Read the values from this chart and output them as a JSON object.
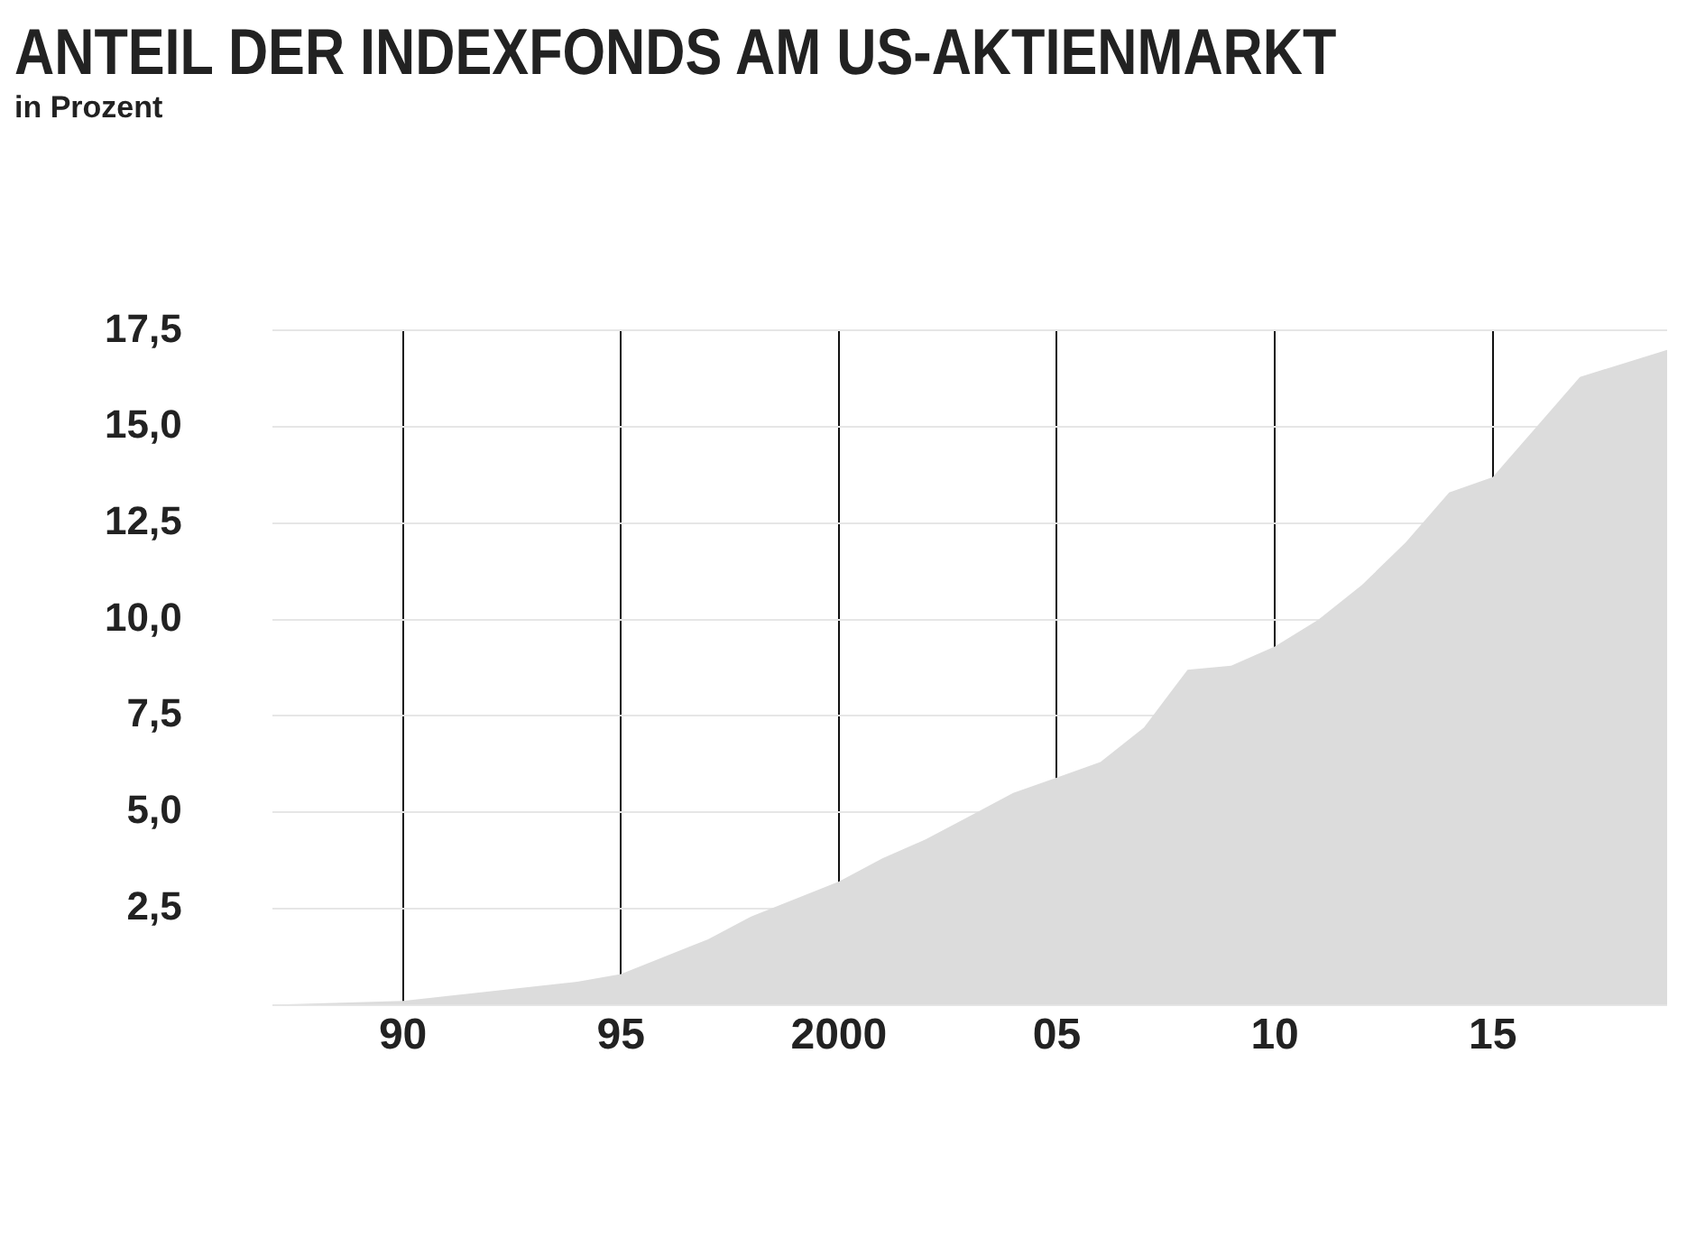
{
  "chart_data": {
    "type": "area",
    "title": "ANTEIL DER INDEXFONDS AM US-AKTIENMARKT",
    "subtitle": "in Prozent",
    "x": [
      1987,
      1990,
      1994,
      1995,
      1997,
      1998,
      2000,
      2001,
      2002,
      2003,
      2004,
      2005,
      2006,
      2007,
      2008,
      2009,
      2010,
      2011,
      2012,
      2013,
      2014,
      2015,
      2016,
      2017,
      2019
    ],
    "series": [
      {
        "color": "#dcdcdc",
        "values": [
          0,
          0.1,
          0.6,
          0.8,
          1.7,
          2.3,
          3.2,
          3.8,
          4.3,
          4.9,
          5.5,
          5.9,
          6.3,
          7.2,
          8.7,
          8.8,
          9.3,
          10.0,
          10.9,
          12.0,
          13.3,
          13.7,
          15.0,
          16.3,
          17.0
        ]
      }
    ],
    "xlim": [
      1987,
      2019
    ],
    "xticks": [
      {
        "value": 1990,
        "label": "90"
      },
      {
        "value": 1995,
        "label": "95"
      },
      2000,
      {
        "value": 2005,
        "label": "05"
      },
      {
        "value": 2010,
        "label": "10"
      },
      {
        "value": 2015,
        "label": "15"
      }
    ],
    "ylim": [
      0,
      17.5
    ],
    "yticks": [
      {
        "value": 0,
        "label": null
      },
      {
        "value": 2.5,
        "label": "2,5"
      },
      {
        "value": 5,
        "label": "5,0"
      },
      {
        "value": 7.5,
        "label": "7,5"
      },
      {
        "value": 10,
        "label": "10,0"
      },
      {
        "value": 12.5,
        "label": "12,5"
      },
      {
        "value": 15,
        "label": "15,0"
      },
      {
        "value": 17.5,
        "label": "17,5"
      }
    ],
    "grid": true,
    "legend": false
  }
}
